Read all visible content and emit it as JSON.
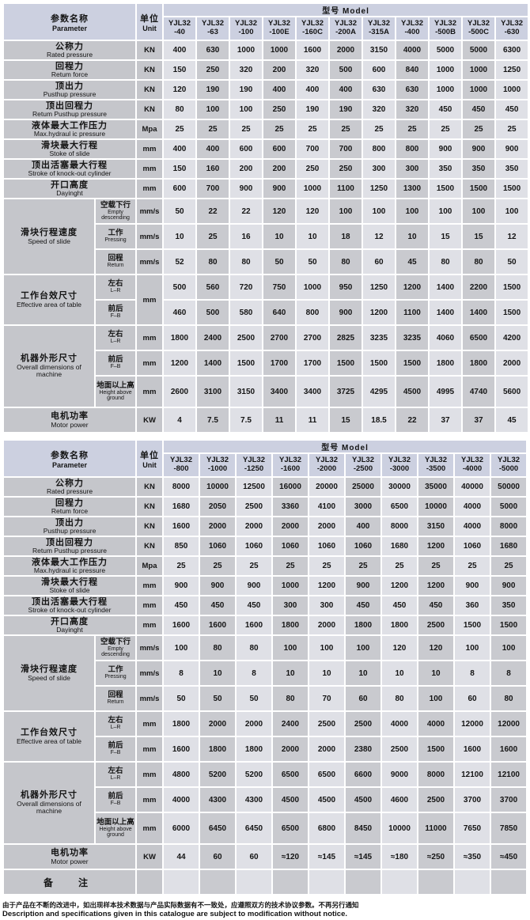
{
  "shared": {
    "param_cn": "参数名称",
    "param_en": "Parameter",
    "unit_cn": "单位",
    "unit_en": "Unit",
    "model_header": "型号 Model",
    "brand": "YJL32",
    "remark_label": "备　注"
  },
  "colors": {
    "header_band": "#ccd0e0",
    "label_gray": "#c5c6cb",
    "cell_light": "#dfe0e6",
    "cell_dark": "#c9cacf"
  },
  "footer": {
    "cn": "由于产品在不断的改进中，如出现样本技术数据与产品实际数据有不一致处，应遵照双方的技术协议参数。不再另行通知",
    "en": "Description and specifications given in this catalogue are subject to modification without notice."
  },
  "tables": [
    {
      "models": [
        "-40",
        "-63",
        "-100",
        "-100E",
        "-160C",
        "-200A",
        "-315A",
        "-400",
        "-500B",
        "-500C",
        "-630"
      ],
      "rows": [
        {
          "l": [
            "公称力",
            "Rated pressure"
          ],
          "u": "KN",
          "v": [
            400,
            630,
            1000,
            1000,
            1600,
            2000,
            3150,
            4000,
            5000,
            5000,
            6300
          ]
        },
        {
          "l": [
            "回程力",
            "Retum force"
          ],
          "u": "KN",
          "v": [
            150,
            250,
            320,
            200,
            320,
            500,
            600,
            840,
            1000,
            1000,
            1250
          ]
        },
        {
          "l": [
            "顶出力",
            "Pusthup pressure"
          ],
          "u": "KN",
          "v": [
            120,
            190,
            190,
            400,
            400,
            400,
            630,
            630,
            1000,
            1000,
            1000
          ]
        },
        {
          "l": [
            "顶出回程力",
            "Retum Pusthup pressure"
          ],
          "u": "KN",
          "v": [
            80,
            100,
            100,
            250,
            190,
            190,
            320,
            320,
            450,
            450,
            450
          ]
        },
        {
          "l": [
            "液体最大工作压力",
            "Max.hydraul ic pressure"
          ],
          "u": "Mpa",
          "v": [
            25,
            25,
            25,
            25,
            25,
            25,
            25,
            25,
            25,
            25,
            25
          ]
        },
        {
          "l": [
            "滑块最大行程",
            "Stoke of slide"
          ],
          "u": "mm",
          "v": [
            400,
            400,
            600,
            600,
            700,
            700,
            800,
            800,
            900,
            900,
            900
          ]
        },
        {
          "l": [
            "顶出活塞最大行程",
            "Stroke of knock-out cylinder"
          ],
          "u": "mm",
          "v": [
            150,
            160,
            200,
            200,
            250,
            250,
            300,
            300,
            350,
            350,
            350
          ]
        },
        {
          "l": [
            "开口高度",
            "Dayinght"
          ],
          "u": "mm",
          "v": [
            600,
            700,
            900,
            900,
            1000,
            1100,
            1250,
            1300,
            1500,
            1500,
            1500
          ]
        },
        {
          "g": [
            "滑块行程速度",
            "Speed of slide",
            3
          ],
          "s": [
            "空载下行",
            "Empty descending"
          ],
          "u": "mm/s",
          "v": [
            50,
            22,
            22,
            120,
            120,
            100,
            100,
            100,
            100,
            100,
            100
          ],
          "rh": "sp"
        },
        {
          "s": [
            "工作",
            "Pressing"
          ],
          "u": "mm/s",
          "v": [
            10,
            25,
            16,
            10,
            10,
            18,
            12,
            10,
            15,
            15,
            12
          ],
          "rh": "sp"
        },
        {
          "s": [
            "回程",
            "Return"
          ],
          "u": "mm/s",
          "v": [
            52,
            80,
            80,
            50,
            50,
            80,
            60,
            45,
            80,
            80,
            50
          ],
          "rh": "sp"
        },
        {
          "g": [
            "工作台效尺寸",
            "Effective area of table",
            2
          ],
          "s": [
            "左右",
            "L–R"
          ],
          "u": "mm",
          "ur": 2,
          "v": [
            500,
            560,
            720,
            750,
            1000,
            950,
            1250,
            1200,
            1400,
            2200,
            1500
          ],
          "rh": "hm"
        },
        {
          "s": [
            "前后",
            "F–B"
          ],
          "v": [
            460,
            500,
            580,
            640,
            800,
            900,
            1200,
            1100,
            1400,
            1400,
            1500
          ],
          "rh": "hm"
        },
        {
          "g": [
            "机器外形尺寸",
            "Overall dimensions of machine",
            3
          ],
          "s": [
            "左右",
            "L–R"
          ],
          "u": "mm",
          "v": [
            1800,
            2400,
            2500,
            2700,
            2700,
            2825,
            3235,
            3235,
            4060,
            6500,
            4200
          ],
          "rh": "hm"
        },
        {
          "s": [
            "前后",
            "F–B"
          ],
          "u": "mm",
          "v": [
            1200,
            1400,
            1500,
            1700,
            1700,
            1500,
            1500,
            1500,
            1800,
            1800,
            2000
          ],
          "rh": "hm"
        },
        {
          "s": [
            "地面以上高",
            "Height above ground"
          ],
          "u": "mm",
          "v": [
            2600,
            3100,
            3150,
            3400,
            3400,
            3725,
            4295,
            4500,
            4995,
            4740,
            5600
          ],
          "rh": "tall"
        },
        {
          "l": [
            "电机功率",
            "Motor power"
          ],
          "u": "KW",
          "v": [
            4,
            7.5,
            7.5,
            11,
            11,
            15,
            18.5,
            22,
            37,
            37,
            45
          ],
          "rh": "hm"
        }
      ],
      "remark": false
    },
    {
      "models": [
        "-800",
        "-1000",
        "-1250",
        "-1600",
        "-2000",
        "-2500",
        "-3000",
        "-3500",
        "-4000",
        "-5000"
      ],
      "rows": [
        {
          "l": [
            "公称力",
            "Rated pressure"
          ],
          "u": "KN",
          "v": [
            8000,
            10000,
            12500,
            16000,
            20000,
            25000,
            30000,
            35000,
            40000,
            50000
          ]
        },
        {
          "l": [
            "回程力",
            "Retum force"
          ],
          "u": "KN",
          "v": [
            1680,
            2050,
            2500,
            3360,
            4100,
            3000,
            6500,
            10000,
            4000,
            5000
          ]
        },
        {
          "l": [
            "顶出力",
            "Pusthup pressure"
          ],
          "u": "KN",
          "v": [
            1600,
            2000,
            2000,
            2000,
            2000,
            400,
            8000,
            3150,
            4000,
            8000
          ]
        },
        {
          "l": [
            "顶出回程力",
            "Retum Pusthup pressure"
          ],
          "u": "KN",
          "v": [
            850,
            1060,
            1060,
            1060,
            1060,
            1060,
            1680,
            1200,
            1060,
            1680
          ]
        },
        {
          "l": [
            "液体最大工作压力",
            "Max.hydraul ic pressure"
          ],
          "u": "Mpa",
          "v": [
            25,
            25,
            25,
            25,
            25,
            25,
            25,
            25,
            25,
            25
          ]
        },
        {
          "l": [
            "滑块最大行程",
            "Stoke of slide"
          ],
          "u": "mm",
          "v": [
            900,
            900,
            900,
            1000,
            1200,
            900,
            1200,
            1200,
            900,
            900
          ]
        },
        {
          "l": [
            "顶出活塞最大行程",
            "Stroke of knock-out cylinder"
          ],
          "u": "mm",
          "v": [
            450,
            450,
            450,
            300,
            300,
            450,
            450,
            450,
            360,
            350
          ]
        },
        {
          "l": [
            "开口高度",
            "Dayinght"
          ],
          "u": "mm",
          "v": [
            1600,
            1600,
            1600,
            1800,
            2000,
            1800,
            1800,
            2500,
            1500,
            1500
          ]
        },
        {
          "g": [
            "滑块行程速度",
            "Speed of slide",
            3
          ],
          "s": [
            "空载下行",
            "Empty descending"
          ],
          "u": "mm/s",
          "v": [
            100,
            80,
            80,
            100,
            100,
            100,
            120,
            120,
            100,
            100
          ],
          "rh": "sp"
        },
        {
          "s": [
            "工作",
            "Pressing"
          ],
          "u": "mm/s",
          "v": [
            8,
            10,
            8,
            10,
            10,
            10,
            10,
            10,
            8,
            8
          ],
          "rh": "sp"
        },
        {
          "s": [
            "回程",
            "Return"
          ],
          "u": "mm/s",
          "v": [
            50,
            50,
            50,
            80,
            70,
            60,
            80,
            100,
            60,
            80
          ],
          "rh": "sp"
        },
        {
          "g": [
            "工作台效尺寸",
            "Effective area of table",
            2
          ],
          "s": [
            "左右",
            "L–R"
          ],
          "u": "mm",
          "v": [
            1800,
            2000,
            2000,
            2400,
            2500,
            2500,
            4000,
            4000,
            12000,
            12000
          ],
          "rh": "hm"
        },
        {
          "s": [
            "前后",
            "F–B"
          ],
          "u": "mm",
          "v": [
            1600,
            1800,
            1800,
            2000,
            2000,
            2380,
            2500,
            1500,
            1600,
            1600
          ],
          "rh": "hm"
        },
        {
          "g": [
            "机器外形尺寸",
            "Overall dimensions of machine",
            3
          ],
          "s": [
            "左右",
            "L–R"
          ],
          "u": "mm",
          "v": [
            4800,
            5200,
            5200,
            6500,
            6500,
            6600,
            9000,
            8000,
            12100,
            12100
          ],
          "rh": "hm"
        },
        {
          "s": [
            "前后",
            "F–B"
          ],
          "u": "mm",
          "v": [
            4000,
            4300,
            4300,
            4500,
            4500,
            4500,
            4600,
            2500,
            3700,
            3700
          ],
          "rh": "hm"
        },
        {
          "s": [
            "地面以上高",
            "Height above ground"
          ],
          "u": "mm",
          "v": [
            6000,
            6450,
            6450,
            6500,
            6800,
            8450,
            10000,
            11000,
            7650,
            7850
          ],
          "rh": "tall"
        },
        {
          "l": [
            "电机功率",
            "Motor power"
          ],
          "u": "KW",
          "v": [
            44,
            60,
            60,
            "≈120",
            "≈145",
            "≈145",
            "≈180",
            "≈250",
            "≈350",
            "≈450"
          ],
          "rh": "hm"
        }
      ],
      "remark": true
    }
  ]
}
